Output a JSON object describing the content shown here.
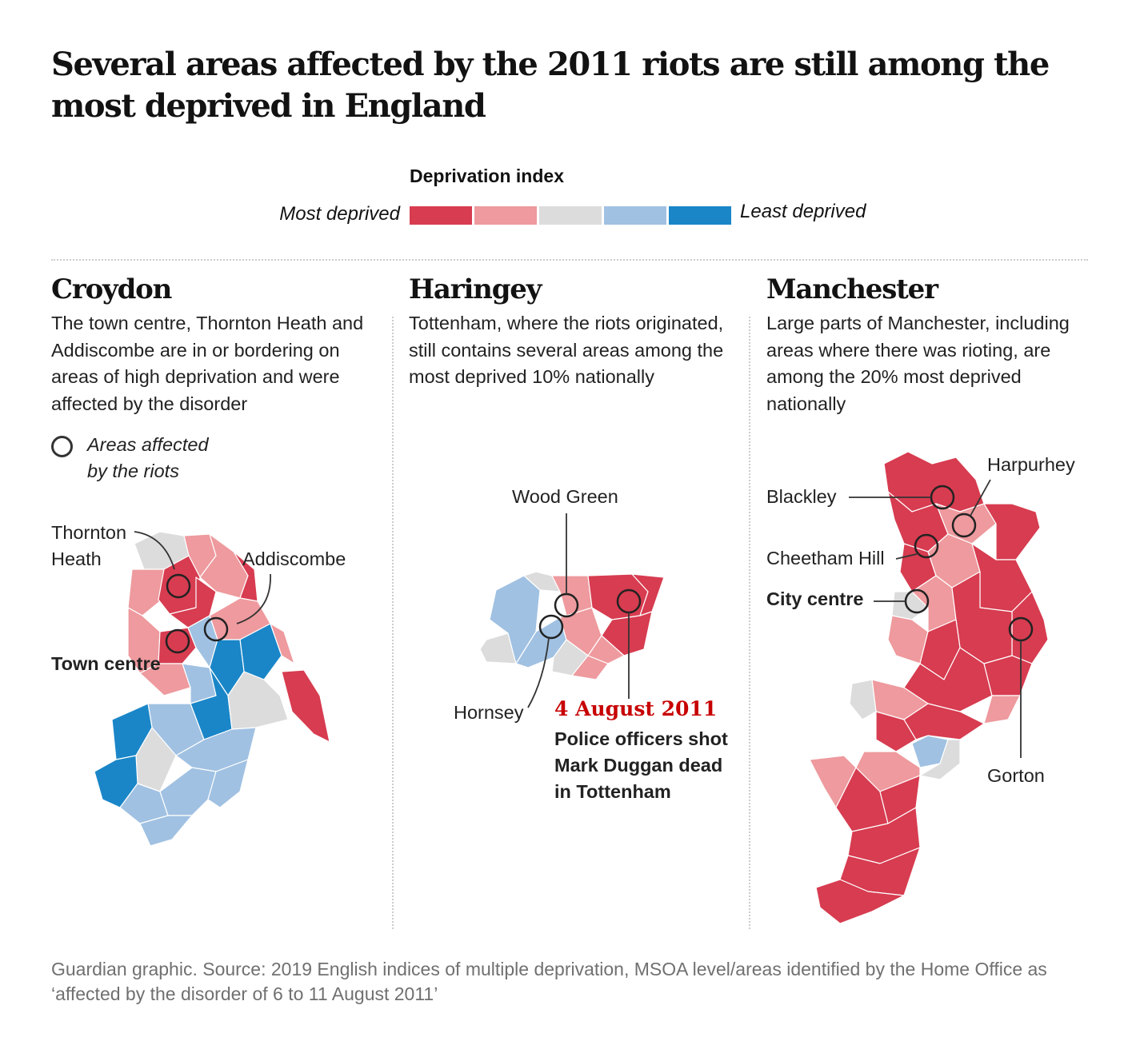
{
  "headline": "Several areas affected by the 2011 riots are still among the most deprived in England",
  "legend": {
    "title": "Deprivation index",
    "most_label": "Most deprived",
    "least_label": "Least deprived",
    "colors": [
      "#d73c50",
      "#ee9a9e",
      "#dcdcdc",
      "#a0c1e2",
      "#1a86c8"
    ]
  },
  "panels": {
    "croydon": {
      "title": "Croydon",
      "description": "The town centre, Thornton Heath and Addiscombe are in or bordering on areas of high deprivation and were affected by the disorder",
      "key_label_1": "Areas affected",
      "key_label_2": "by the riots",
      "labels": {
        "thornton_1": "Thornton",
        "thornton_2": "Heath",
        "addiscombe": "Addiscombe",
        "town_centre": "Town centre"
      }
    },
    "haringey": {
      "title": "Haringey",
      "description": "Tottenham, where the riots originated, still contains several areas among the most deprived 10% nationally",
      "labels": {
        "wood_green": "Wood Green",
        "hornsey": "Hornsey"
      },
      "annotation": {
        "date": "4 August 2011",
        "line_1": "Police officers shot",
        "line_2": "Mark Duggan dead",
        "line_3": "in Tottenham"
      }
    },
    "manchester": {
      "title": "Manchester",
      "description": "Large parts of Manchester, including areas where there was rioting, are among the 20% most deprived nationally",
      "labels": {
        "harpurhey": "Harpurhey",
        "blackley": "Blackley",
        "cheetham_hill": "Cheetham Hill",
        "city_centre": "City centre",
        "gorton": "Gorton"
      }
    }
  },
  "source": "Guardian graphic. Source: 2019 English indices of multiple deprivation, MSOA level/areas identified by the Home Office as ‘affected by the disorder of 6 to 11 August 2011’"
}
